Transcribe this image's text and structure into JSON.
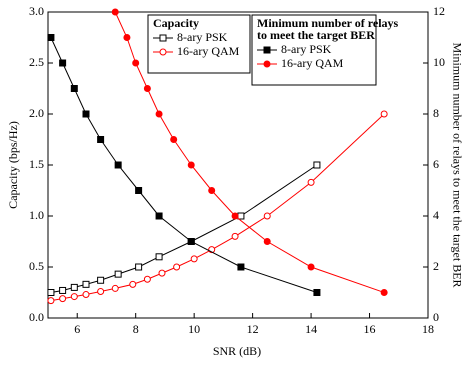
{
  "chart_data": {
    "type": "line",
    "x_label": "SNR (dB)",
    "y_label": "Capacity (bps/Hz)",
    "y2_label": "Minimum number of relays to meet the target BER",
    "xlim": [
      5,
      18
    ],
    "xticks": [
      6,
      8,
      10,
      12,
      14,
      16,
      18
    ],
    "ylim": [
      0,
      3
    ],
    "yticks": [
      0.0,
      0.5,
      1.0,
      1.5,
      2.0,
      2.5,
      3.0
    ],
    "ytick_labels": [
      "0.0",
      "0.5",
      "1.0",
      "1.5",
      "2.0",
      "2.5",
      "3.0"
    ],
    "y2lim": [
      0,
      12
    ],
    "y2ticks": [
      0,
      2,
      4,
      6,
      8,
      10,
      12
    ],
    "legend_titles": [
      "Capacity",
      "Minimum number of relays to meet the target BER"
    ],
    "series": [
      {
        "name": "8-ary PSK",
        "group": 0,
        "color": "#000000",
        "marker": "square",
        "filled": false,
        "x": [
          5.1,
          5.5,
          5.9,
          6.3,
          6.8,
          7.4,
          8.1,
          8.8,
          9.9,
          11.6,
          14.2
        ],
        "values": [
          0.25,
          0.27,
          0.3,
          0.33,
          0.37,
          0.43,
          0.5,
          0.6,
          0.75,
          1.0,
          1.5
        ]
      },
      {
        "name": "16-ary QAM",
        "group": 0,
        "color": "#ff0000",
        "marker": "circle",
        "filled": false,
        "x": [
          5.1,
          5.5,
          5.9,
          6.3,
          6.8,
          7.3,
          7.9,
          8.4,
          8.9,
          9.4,
          10.0,
          10.6,
          11.4,
          12.5,
          14.0,
          16.5
        ],
        "values": [
          0.17,
          0.19,
          0.21,
          0.23,
          0.26,
          0.29,
          0.33,
          0.38,
          0.44,
          0.5,
          0.58,
          0.67,
          0.8,
          1.0,
          1.33,
          2.0
        ]
      },
      {
        "name": "8-ary PSK",
        "group": 1,
        "axis": "y2",
        "color": "#000000",
        "marker": "square",
        "filled": true,
        "x": [
          5.1,
          5.5,
          5.9,
          6.3,
          6.8,
          7.4,
          8.1,
          8.8,
          9.9,
          11.6,
          14.2
        ],
        "values": [
          11,
          10,
          9,
          8,
          7,
          6,
          5,
          4,
          3,
          2,
          1
        ]
      },
      {
        "name": "16-ary QAM",
        "group": 1,
        "axis": "y2",
        "color": "#ff0000",
        "marker": "circle",
        "filled": true,
        "x": [
          7.3,
          7.7,
          8.0,
          8.4,
          8.8,
          9.3,
          9.9,
          10.6,
          11.4,
          12.5,
          14.0,
          16.5
        ],
        "values": [
          12,
          11,
          10,
          9,
          8,
          7,
          6,
          5,
          4,
          3,
          2,
          1
        ]
      }
    ]
  }
}
